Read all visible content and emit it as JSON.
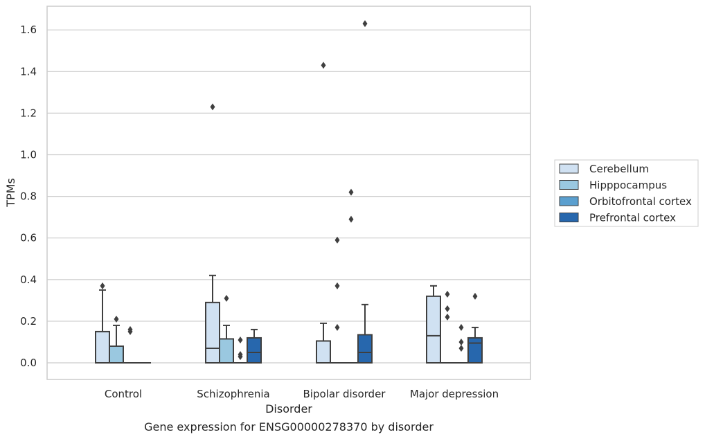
{
  "chart_data": {
    "type": "box",
    "title": "Gene expression for ENSG00000278370 by disorder",
    "xlabel": "Disorder",
    "ylabel": "TPMs",
    "ylim": [
      -0.08,
      1.71
    ],
    "yticks": [
      0.0,
      0.2,
      0.4,
      0.6,
      0.8,
      1.0,
      1.2,
      1.4,
      1.6
    ],
    "ytick_labels": [
      "0.0",
      "0.2",
      "0.4",
      "0.6",
      "0.8",
      "1.0",
      "1.2",
      "1.4",
      "1.6"
    ],
    "grid": "horizontal",
    "legend_position": "right",
    "categories": [
      "Control",
      "Schizophrenia",
      "Bipolar disorder",
      "Major depression"
    ],
    "series": [
      {
        "name": "Cerebellum",
        "color": "#d0e1f2",
        "boxes": [
          {
            "q1": 0.0,
            "median": 0.0,
            "q3": 0.15,
            "whisker_low": 0.0,
            "whisker_high": 0.35,
            "outliers": [
              0.37
            ]
          },
          {
            "q1": 0.0,
            "median": 0.07,
            "q3": 0.29,
            "whisker_low": 0.0,
            "whisker_high": 0.42,
            "outliers": [
              1.23
            ]
          },
          {
            "q1": 0.0,
            "median": 0.0,
            "q3": 0.105,
            "whisker_low": 0.0,
            "whisker_high": 0.19,
            "outliers": [
              1.43
            ]
          },
          {
            "q1": 0.0,
            "median": 0.13,
            "q3": 0.32,
            "whisker_low": 0.0,
            "whisker_high": 0.37,
            "outliers": []
          }
        ]
      },
      {
        "name": "Hipppocampus",
        "color": "#9ac8e0",
        "boxes": [
          {
            "q1": 0.0,
            "median": 0.0,
            "q3": 0.08,
            "whisker_low": 0.0,
            "whisker_high": 0.18,
            "outliers": [
              0.21
            ]
          },
          {
            "q1": 0.0,
            "median": 0.0,
            "q3": 0.115,
            "whisker_low": 0.0,
            "whisker_high": 0.18,
            "outliers": [
              0.31
            ]
          },
          {
            "q1": 0.0,
            "median": 0.0,
            "q3": 0.0,
            "whisker_low": 0.0,
            "whisker_high": 0.0,
            "outliers": [
              0.17,
              0.37,
              0.59
            ]
          },
          {
            "q1": 0.0,
            "median": 0.0,
            "q3": 0.0,
            "whisker_low": 0.0,
            "whisker_high": 0.0,
            "outliers": [
              0.22,
              0.26,
              0.33
            ]
          }
        ]
      },
      {
        "name": "Orbitofrontal cortex",
        "color": "#5a9fcf",
        "boxes": [
          {
            "q1": 0.0,
            "median": 0.0,
            "q3": 0.0,
            "whisker_low": 0.0,
            "whisker_high": 0.0,
            "outliers": [
              0.15,
              0.16
            ]
          },
          {
            "q1": 0.0,
            "median": 0.0,
            "q3": 0.0,
            "whisker_low": 0.0,
            "whisker_high": 0.0,
            "outliers": [
              0.03,
              0.04,
              0.11
            ]
          },
          {
            "q1": 0.0,
            "median": 0.0,
            "q3": 0.0,
            "whisker_low": 0.0,
            "whisker_high": 0.0,
            "outliers": [
              0.69,
              0.82
            ]
          },
          {
            "q1": 0.0,
            "median": 0.0,
            "q3": 0.0,
            "whisker_low": 0.0,
            "whisker_high": 0.0,
            "outliers": [
              0.07,
              0.1,
              0.17
            ]
          }
        ]
      },
      {
        "name": "Prefrontal cortex",
        "color": "#2767ad",
        "boxes": [
          {
            "q1": 0.0,
            "median": 0.0,
            "q3": 0.0,
            "whisker_low": 0.0,
            "whisker_high": 0.0,
            "outliers": []
          },
          {
            "q1": 0.0,
            "median": 0.05,
            "q3": 0.12,
            "whisker_low": 0.0,
            "whisker_high": 0.16,
            "outliers": []
          },
          {
            "q1": 0.0,
            "median": 0.05,
            "q3": 0.135,
            "whisker_low": 0.0,
            "whisker_high": 0.28,
            "outliers": [
              1.63
            ]
          },
          {
            "q1": 0.0,
            "median": 0.095,
            "q3": 0.12,
            "whisker_low": 0.0,
            "whisker_high": 0.17,
            "outliers": [
              0.32
            ]
          }
        ]
      }
    ]
  }
}
